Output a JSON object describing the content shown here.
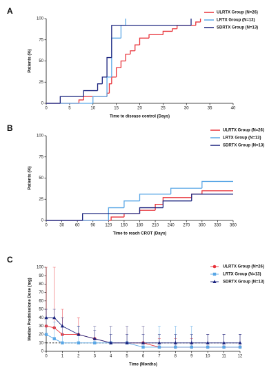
{
  "chart_data": [
    {
      "type": "step",
      "panel_label": "A",
      "xlabel": "Time to disease control (Days)",
      "ylabel": "Patients (%)",
      "xlim": [
        0,
        40
      ],
      "xticks": [
        0,
        5,
        10,
        15,
        20,
        25,
        30,
        35,
        40
      ],
      "ylim": [
        0,
        100
      ],
      "yticks": [
        0,
        25,
        50,
        75,
        100
      ],
      "legend": "upper right",
      "series": [
        {
          "name": "ULRTX Group (N=26)",
          "color": "#e8333a",
          "x": [
            0,
            7,
            8,
            13,
            13.5,
            14,
            15,
            16,
            17,
            18,
            19,
            20,
            22,
            25,
            27,
            28,
            32,
            33
          ],
          "values": [
            0,
            4,
            8,
            12,
            23,
            31,
            42,
            50,
            58,
            62,
            69,
            77,
            81,
            85,
            88,
            92,
            96,
            100
          ]
        },
        {
          "name": "LRTX Group (N=13)",
          "color": "#5aa7e6",
          "x": [
            0,
            10,
            13,
            14,
            16,
            17
          ],
          "values": [
            0,
            8,
            31,
            77,
            92,
            100
          ]
        },
        {
          "name": "SDRTX Group (N=13)",
          "color": "#1a237e",
          "x": [
            0,
            3,
            8,
            11,
            12,
            13,
            14,
            31
          ],
          "values": [
            0,
            8,
            15,
            23,
            31,
            54,
            92,
            100
          ]
        }
      ]
    },
    {
      "type": "step",
      "panel_label": "B",
      "xlabel": "Time to reach CROT (Days)",
      "ylabel": "Patients (%)",
      "xlim": [
        0,
        360
      ],
      "xticks": [
        0,
        30,
        60,
        90,
        120,
        150,
        180,
        210,
        240,
        270,
        300,
        330,
        360
      ],
      "ylim": [
        0,
        100
      ],
      "yticks": [
        0,
        25,
        50,
        75,
        100
      ],
      "legend": "upper right",
      "series": [
        {
          "name": "ULRTX Group (N=26)",
          "color": "#e8333a",
          "x": [
            0,
            125,
            150,
            180,
            210,
            225,
            280,
            300,
            360
          ],
          "values": [
            0,
            4,
            8,
            12,
            19,
            27,
            31,
            35,
            35
          ]
        },
        {
          "name": "LRTX Group (N=13)",
          "color": "#5aa7e6",
          "x": [
            0,
            120,
            150,
            180,
            240,
            300,
            360
          ],
          "values": [
            0,
            15,
            23,
            31,
            38,
            46,
            46
          ]
        },
        {
          "name": "SDRTX Group (N=13)",
          "color": "#1a237e",
          "x": [
            0,
            70,
            180,
            225,
            280,
            360
          ],
          "values": [
            0,
            8,
            15,
            23,
            31,
            31
          ]
        }
      ]
    },
    {
      "type": "line",
      "panel_label": "C",
      "xlabel": "Time (Months)",
      "ylabel": "Median Prednisolone Dose (mg)",
      "xlim": [
        0,
        12
      ],
      "xticks": [
        0,
        1,
        2,
        3,
        4,
        5,
        6,
        7,
        8,
        9,
        10,
        11,
        12
      ],
      "ylim": [
        0,
        100
      ],
      "yticks": [
        0,
        10,
        20,
        30,
        40,
        50,
        60,
        70,
        80,
        90,
        100
      ],
      "reference_line": 10,
      "legend": "upper right",
      "x": [
        0,
        0.5,
        1,
        2,
        3,
        4,
        5,
        6,
        7,
        8,
        9,
        10,
        11,
        12
      ],
      "series": [
        {
          "name": "ULRTX Group (N=26)",
          "color": "#e8333a",
          "marker": "circle",
          "values": [
            30,
            28,
            20,
            20,
            15,
            10,
            10,
            10,
            5,
            5,
            5,
            5,
            5,
            5
          ],
          "errors": [
            70,
            72,
            30,
            20,
            15,
            20,
            20,
            20,
            10,
            10,
            10,
            15,
            15,
            15
          ]
        },
        {
          "name": "LRTX Group (N=13)",
          "color": "#5aa7e6",
          "marker": "square",
          "values": [
            20,
            15,
            10,
            10,
            10,
            10,
            10,
            5,
            5,
            5,
            5,
            5,
            5,
            5
          ],
          "errors": [
            20,
            20,
            20,
            20,
            20,
            20,
            20,
            25,
            25,
            25,
            25,
            15,
            15,
            15
          ]
        },
        {
          "name": "SDRTX Group (N=13)",
          "color": "#1a237e",
          "marker": "triangle",
          "values": [
            40,
            40,
            30,
            20,
            15,
            10,
            10,
            10,
            10,
            10,
            10,
            10,
            10,
            10
          ],
          "errors": [
            10,
            10,
            10,
            10,
            10,
            10,
            10,
            10,
            10,
            10,
            10,
            10,
            10,
            10
          ]
        }
      ]
    }
  ]
}
